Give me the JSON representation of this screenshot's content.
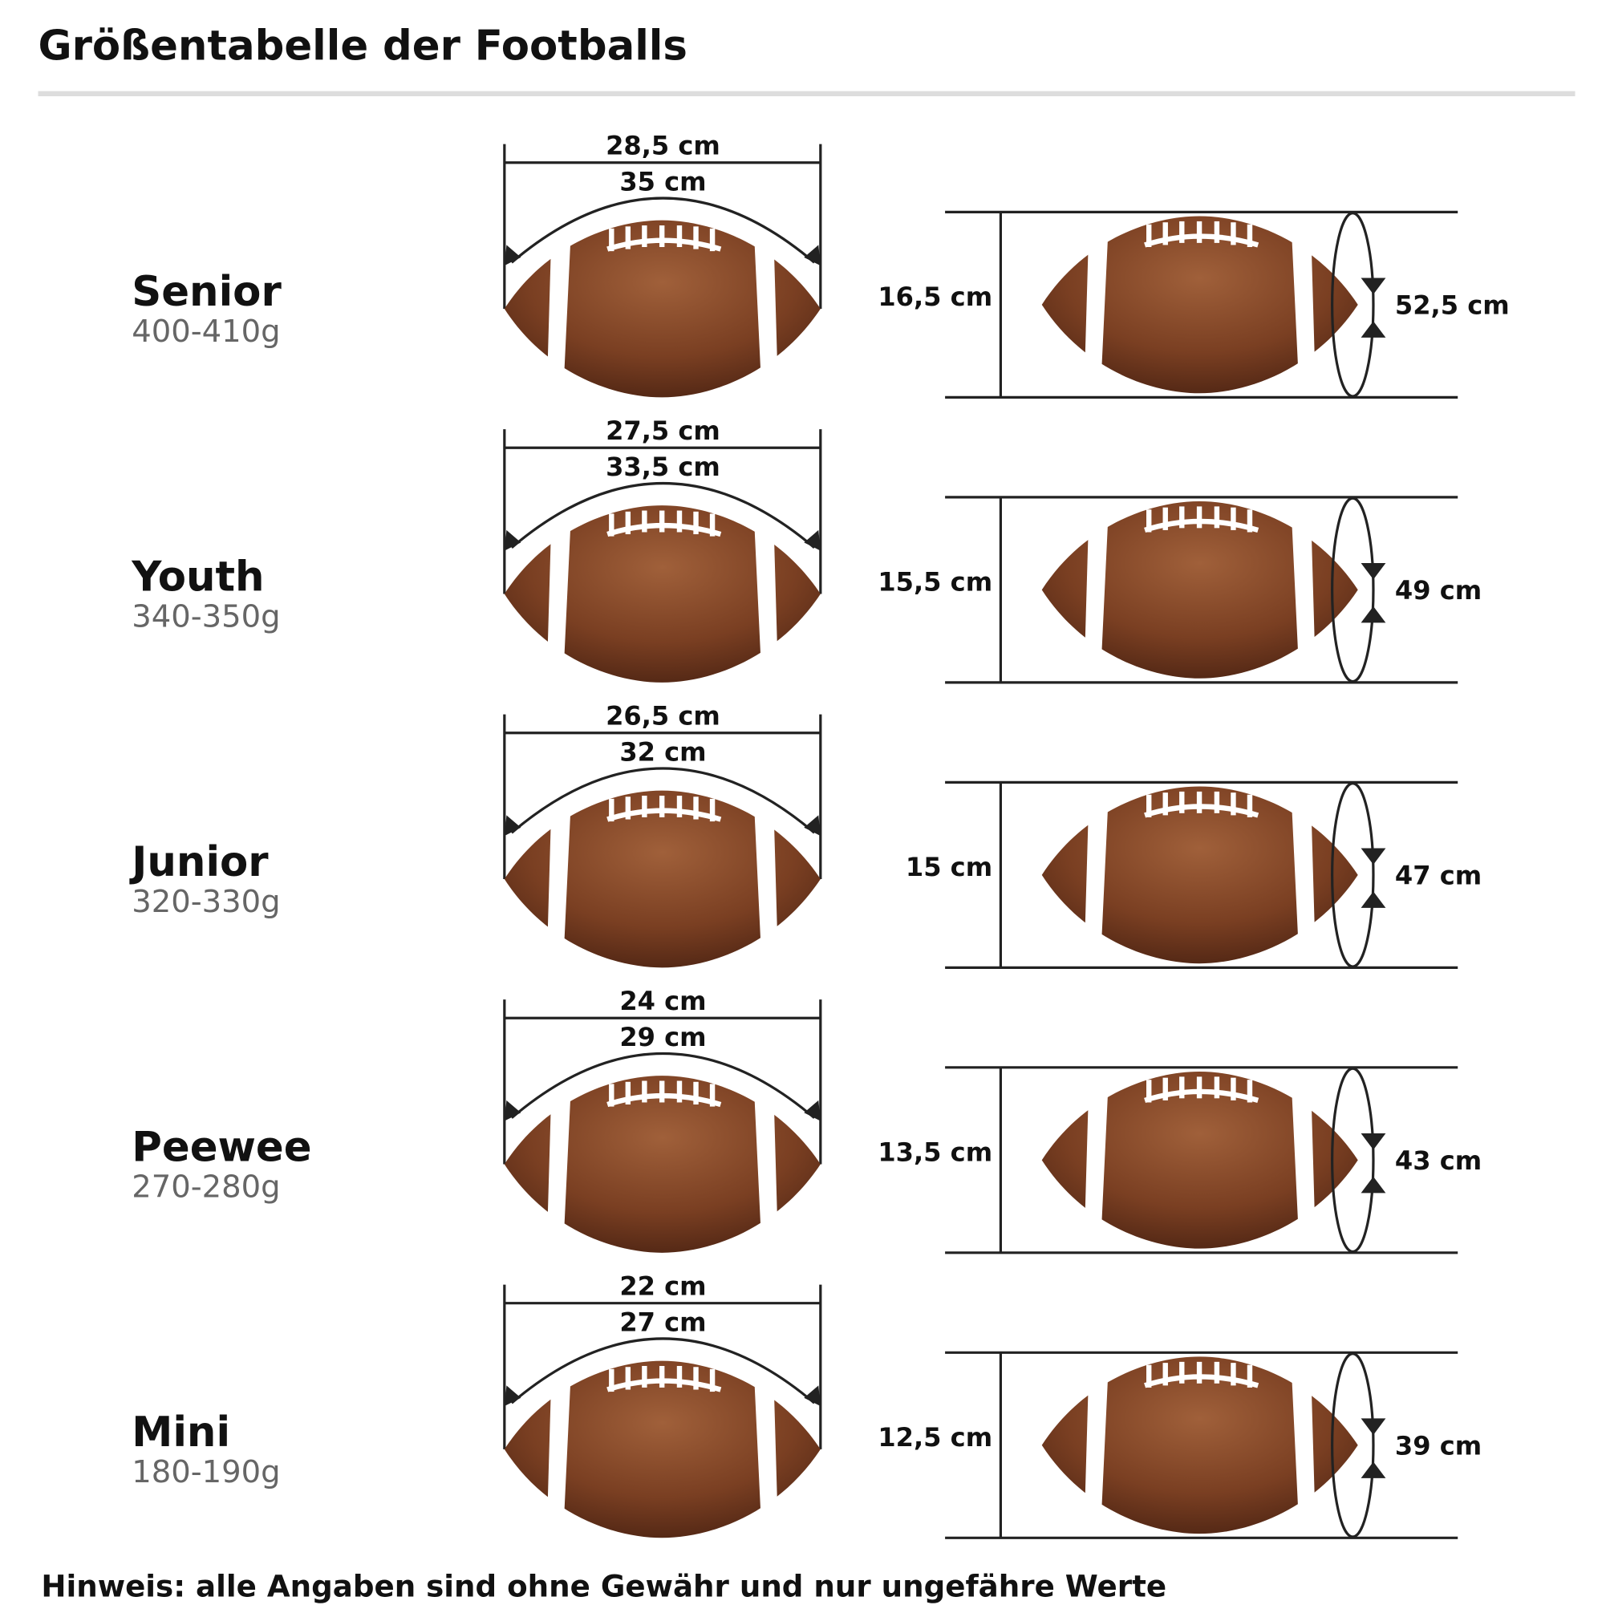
{
  "header": {
    "title": "Größentabelle der Footballs"
  },
  "rows": [
    {
      "name": "Senior",
      "weight": "400-410g",
      "length": "28,5 cm",
      "length_arc": "35 cm",
      "height": "16,5 cm",
      "circumference": "52,5 cm"
    },
    {
      "name": "Youth",
      "weight": "340-350g",
      "length": "27,5 cm",
      "length_arc": "33,5 cm",
      "height": "15,5 cm",
      "circumference": "49 cm"
    },
    {
      "name": "Junior",
      "weight": "320-330g",
      "length": "26,5 cm",
      "length_arc": "32 cm",
      "height": "15 cm",
      "circumference": "47 cm"
    },
    {
      "name": "Peewee",
      "weight": "270-280g",
      "length": "24 cm",
      "length_arc": "29 cm",
      "height": "13,5 cm",
      "circumference": "43 cm"
    },
    {
      "name": "Mini",
      "weight": "180-190g",
      "length": "22 cm",
      "length_arc": "27 cm",
      "height": "12,5 cm",
      "circumference": "39 cm"
    }
  ],
  "footer": {
    "note": "Hinweis: alle Angaben sind ohne Gewähr und nur ungefähre Werte"
  }
}
